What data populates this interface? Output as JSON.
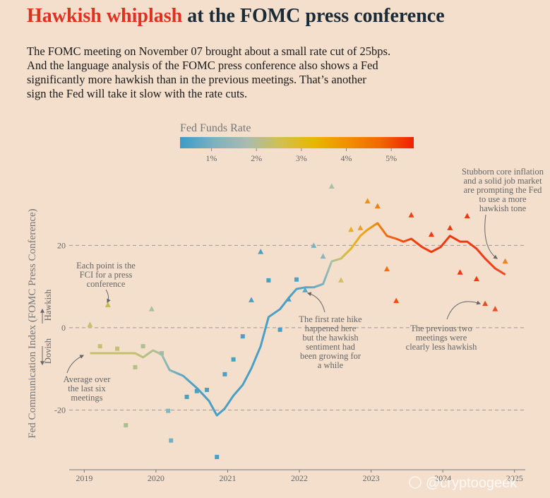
{
  "title_highlight": "Hawkish whiplash",
  "title": "at the FOMC press conference",
  "subtitle": [
    "The FOMC meeting on November 07 brought about a small rate cut of 25bps.",
    "And the language analysis of the FOMC press conference also shows a Fed",
    "significantly more hawkish than in the previous meetings. That’s another",
    "sign the Fed will take it slow with the rate cuts."
  ],
  "watermark": "@cryptoogeek",
  "chart_data": {
    "type": "scatter",
    "y_label": "Fed Communication Index (FOMC Press Conference)",
    "hawkish_label": "Hawkish",
    "dovish_label": "Dovish",
    "xlim": [
      2018.79,
      2025.15
    ],
    "xticks": [
      2019,
      2020,
      2021,
      2022,
      2023,
      2024,
      2025
    ],
    "ylim": [
      -34.5,
      36.7
    ],
    "yticks": [
      -20,
      0,
      20
    ],
    "grid": true,
    "points": {
      "x": [
        2019.08,
        2019.22,
        2019.33,
        2019.46,
        2019.58,
        2019.71,
        2019.82,
        2019.94,
        2020.08,
        2020.17,
        2020.21,
        2020.43,
        2020.57,
        2020.71,
        2020.85,
        2020.96,
        2021.08,
        2021.21,
        2021.33,
        2021.46,
        2021.57,
        2021.73,
        2021.85,
        2021.96,
        2022.08,
        2022.2,
        2022.33,
        2022.45,
        2022.58,
        2022.72,
        2022.85,
        2022.95,
        2023.09,
        2023.22,
        2023.35,
        2023.56,
        2023.84,
        2024.1,
        2024.24,
        2024.34,
        2024.47,
        2024.59,
        2024.73,
        2024.87
      ],
      "values": [
        0.7,
        -4.5,
        5.5,
        -5.1,
        -23.7,
        -9.6,
        -4.5,
        4.5,
        -6.2,
        -20.2,
        -27.4,
        -16.8,
        -15.4,
        -15.1,
        -31.4,
        -11.3,
        -7.7,
        -2.1,
        6.7,
        18.4,
        11.5,
        -0.5,
        6.9,
        11.7,
        9.1,
        19.9,
        17.3,
        34.3,
        11.5,
        23.8,
        24.2,
        30.7,
        29.5,
        14.2,
        6.5,
        27.3,
        22.6,
        24.2,
        13.4,
        27.1,
        11.8,
        5.8,
        4.5,
        16.1
      ],
      "colors": [
        "#c8c068",
        "#c8c070",
        "#c8b850",
        "#c4c070",
        "#a8c090",
        "#b4c084",
        "#b0c090",
        "#a8c0a0",
        "#a0bca8",
        "#80b8c0",
        "#70b0c0",
        "#4aa0c0",
        "#4a9fc4",
        "#4a9fc4",
        "#4a9fc4",
        "#4a9fc4",
        "#4a9fc4",
        "#4a9fc4",
        "#4a9fc4",
        "#4a9fc4",
        "#4a9fc4",
        "#4a9fc4",
        "#4a9fc4",
        "#4ea2c4",
        "#5aa6c4",
        "#80b0c0",
        "#8cb4bc",
        "#a8c0a8",
        "#d0c060",
        "#e8b020",
        "#e8a020",
        "#f09010",
        "#f08010",
        "#f07010",
        "#f05010",
        "#f04010",
        "#f03a10",
        "#f03810",
        "#f03810",
        "#f03810",
        "#f03a14",
        "#e05020",
        "#e85028",
        "#f08030"
      ],
      "markers": [
        "triangle",
        "square",
        "triangle",
        "square",
        "square",
        "square",
        "square",
        "triangle",
        "square",
        "square",
        "square",
        "square",
        "square",
        "square",
        "square",
        "square",
        "square",
        "square",
        "triangle",
        "triangle",
        "square",
        "square",
        "triangle",
        "square",
        "triangle",
        "triangle",
        "triangle",
        "triangle",
        "triangle",
        "triangle",
        "triangle",
        "triangle",
        "triangle",
        "triangle",
        "triangle",
        "triangle",
        "triangle",
        "triangle",
        "triangle",
        "triangle",
        "triangle",
        "triangle",
        "triangle",
        "triangle"
      ]
    },
    "line": {
      "x": [
        2019.08,
        2019.71,
        2019.82,
        2019.96,
        2020.08,
        2020.19,
        2020.38,
        2020.58,
        2020.74,
        2020.85,
        2020.96,
        2021.08,
        2021.21,
        2021.33,
        2021.46,
        2021.57,
        2021.73,
        2021.85,
        2021.96,
        2022.08,
        2022.2,
        2022.33,
        2022.45,
        2022.58,
        2022.72,
        2022.85,
        2022.95,
        2023.09,
        2023.22,
        2023.35,
        2023.45,
        2023.56,
        2023.71,
        2023.84,
        2023.97,
        2024.1,
        2024.24,
        2024.34,
        2024.47,
        2024.59,
        2024.73,
        2024.87
      ],
      "values": [
        -6.2,
        -6.2,
        -7.2,
        -5.5,
        -6.5,
        -10.3,
        -11.7,
        -14.8,
        -17.8,
        -21.3,
        -19.6,
        -16.5,
        -13.9,
        -9.9,
        -4.5,
        2.6,
        4.5,
        7.2,
        9.4,
        9.8,
        9.8,
        10.6,
        16.1,
        16.8,
        19.2,
        22.3,
        23.8,
        25.4,
        22.3,
        21.6,
        20.9,
        21.6,
        19.6,
        18.4,
        19.6,
        22.3,
        20.9,
        20.9,
        19.2,
        16.8,
        14.4,
        12.9
      ],
      "colors": [
        "#c8c068",
        "#c4c070",
        "#b8c080",
        "#b0c090",
        "#a0bca8",
        "#80b4bc",
        "#5aa6c4",
        "#4a9fc4",
        "#4a9fc4",
        "#4a9fc4",
        "#4a9fc4",
        "#4a9fc4",
        "#4a9fc4",
        "#4a9fc4",
        "#4a9fc4",
        "#4a9fc4",
        "#4a9fc4",
        "#4a9fc4",
        "#4ea2c4",
        "#5aa6c4",
        "#6aa8c4",
        "#80b0c0",
        "#a8c0a8",
        "#c8c058",
        "#e0b828",
        "#eca818",
        "#f0a010",
        "#f08010",
        "#f06a10",
        "#f05a10",
        "#f04c10",
        "#f04010",
        "#f03a10",
        "#f03810",
        "#f03810",
        "#f03810",
        "#f03810",
        "#f03810",
        "#f03a14",
        "#f03c18",
        "#f04420",
        "#f04a20"
      ]
    },
    "colorbar": {
      "title": "Fed Funds Rate",
      "range": [
        0.3,
        5.5
      ],
      "ticks": [
        {
          "value": 1,
          "label": "1%"
        },
        {
          "value": 2,
          "label": "2%"
        },
        {
          "value": 3,
          "label": "3%"
        },
        {
          "value": 4,
          "label": "4%"
        },
        {
          "value": 5,
          "label": "5%"
        }
      ],
      "colors": [
        "#3a9cc8",
        "#7cb0c0",
        "#a8bcb0",
        "#d0c050",
        "#e8b800",
        "#f09000",
        "#f06800",
        "#f02000"
      ]
    },
    "annotations": [
      {
        "lines": [
          "Each point is the",
          "FCI for a press",
          "conference"
        ]
      },
      {
        "lines": [
          "Average over",
          "the last six",
          "meetings"
        ]
      },
      {
        "lines": [
          "The first rate hike",
          "happened here",
          "but the hawkish",
          "sentiment had",
          "been growing for",
          "a while"
        ]
      },
      {
        "lines": [
          "The previous two",
          "meetings were",
          "clearly less hawkish"
        ]
      },
      {
        "lines": [
          "Stubborn core inflation",
          "and a solid job market",
          "are prompting the Fed",
          "to use a more",
          "hawkish tone"
        ]
      }
    ]
  }
}
